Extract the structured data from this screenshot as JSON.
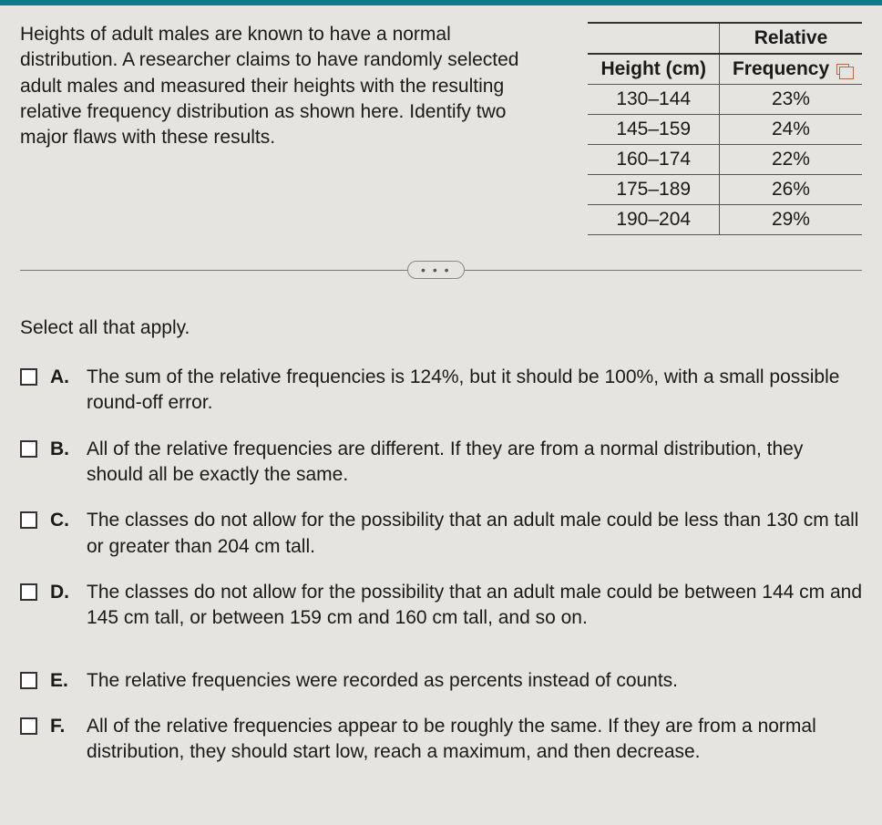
{
  "question": "Heights of adult males are known to have a normal distribution. A researcher claims to have randomly selected adult males and measured their heights with the resulting relative frequency distribution as shown here. Identify two major flaws with these results.",
  "table": {
    "headers": {
      "col1": "Height (cm)",
      "col2_top": "Relative",
      "col2_bottom": "Frequency"
    },
    "rows": [
      {
        "h": "130–144",
        "f": "23%"
      },
      {
        "h": "145–159",
        "f": "24%"
      },
      {
        "h": "160–174",
        "f": "22%"
      },
      {
        "h": "175–189",
        "f": "26%"
      },
      {
        "h": "190–204",
        "f": "29%"
      }
    ]
  },
  "dots": "• • •",
  "select_label": "Select all that apply.",
  "options": {
    "A": {
      "letter": "A.",
      "text": "The sum of the relative frequencies is 124%, but it should be 100%, with a small possible round-off error."
    },
    "B": {
      "letter": "B.",
      "text": "All of the relative frequencies are different. If they are from a normal distribution, they should all be exactly the same."
    },
    "C": {
      "letter": "C.",
      "text": "The classes do not allow for the possibility that an adult male could be less than 130 cm tall or greater than 204 cm tall."
    },
    "D": {
      "letter": "D.",
      "text": "The classes do not allow for the possibility that an adult male could be between 144 cm and 145 cm tall, or between 159 cm and 160 cm tall, and so on."
    },
    "E": {
      "letter": "E.",
      "text": "The relative frequencies were recorded as percents instead of counts."
    },
    "F": {
      "letter": "F.",
      "text": "All of the relative frequencies appear to be roughly the same. If they are from a normal distribution, they should start low, reach a maximum, and then decrease."
    }
  }
}
